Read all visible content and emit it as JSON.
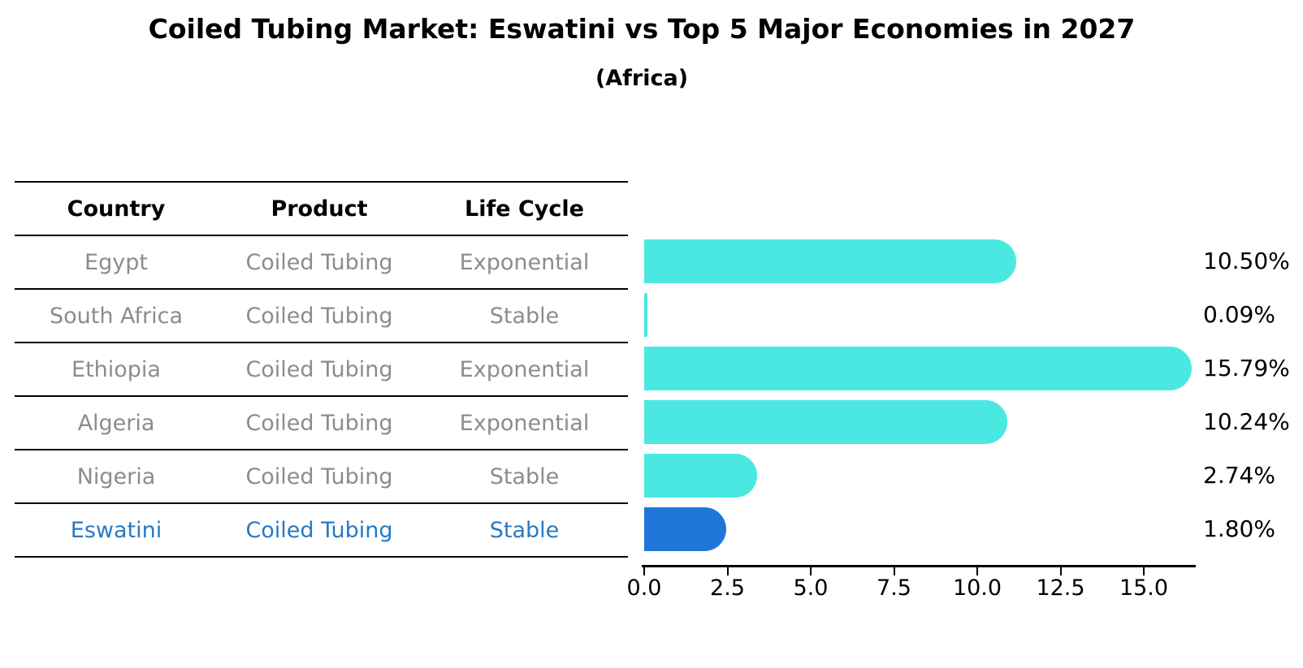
{
  "title": "Coiled Tubing Market: Eswatini vs Top 5 Major Economies in 2027",
  "subtitle": "(Africa)",
  "table": {
    "headers": [
      "Country",
      "Product",
      "Life Cycle"
    ],
    "rows": [
      {
        "country": "Egypt",
        "product": "Coiled Tubing",
        "life_cycle": "Exponential",
        "highlight": false
      },
      {
        "country": "South Africa",
        "product": "Coiled Tubing",
        "life_cycle": "Stable",
        "highlight": false
      },
      {
        "country": "Ethiopia",
        "product": "Coiled Tubing",
        "life_cycle": "Exponential",
        "highlight": false
      },
      {
        "country": "Algeria",
        "product": "Coiled Tubing",
        "life_cycle": "Exponential",
        "highlight": false
      },
      {
        "country": "Nigeria",
        "product": "Coiled Tubing",
        "life_cycle": "Stable",
        "highlight": false
      },
      {
        "country": "Eswatini",
        "product": "Coiled Tubing",
        "life_cycle": "Stable",
        "highlight": true
      }
    ]
  },
  "chart_data": {
    "type": "bar",
    "orientation": "horizontal",
    "title": "Coiled Tubing Market: Eswatini vs Top 5 Major Economies in 2027",
    "subtitle": "(Africa)",
    "categories": [
      "Egypt",
      "South Africa",
      "Ethiopia",
      "Algeria",
      "Nigeria",
      "Eswatini"
    ],
    "values": [
      10.5,
      0.09,
      15.79,
      10.24,
      2.74,
      1.8
    ],
    "value_labels": [
      "10.50%",
      "0.09%",
      "15.79%",
      "10.24%",
      "2.74%",
      "1.80%"
    ],
    "highlight_index": 5,
    "x_ticks": [
      0.0,
      2.5,
      5.0,
      7.5,
      10.0,
      12.5,
      15.0
    ],
    "x_tick_labels": [
      "0.0",
      "2.5",
      "5.0",
      "7.5",
      "10.0",
      "12.5",
      "15.0"
    ],
    "xlim": [
      0,
      16.5
    ],
    "grid": false,
    "legend": "none",
    "bar_color": "#4be8e2",
    "highlight_bar_color": "#1f76d9",
    "highlight_text_color": "#2779c4",
    "text_color": "#8c8c8c",
    "axis_color": "#000000"
  }
}
